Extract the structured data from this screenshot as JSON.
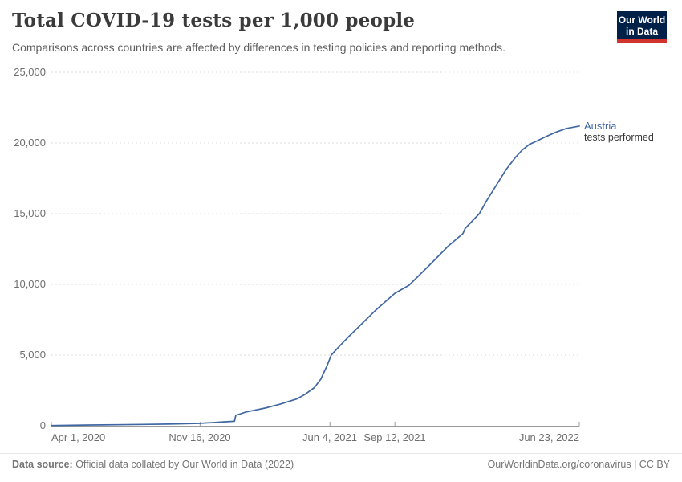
{
  "header": {
    "title": "Total COVID-19 tests per 1,000 people",
    "subtitle": "Comparisons across countries are affected by differences in testing policies and reporting methods.",
    "logo": {
      "line1": "Our World",
      "line2": "in Data",
      "bg_color": "#002147",
      "accent_color": "#D0342C"
    }
  },
  "chart_data": {
    "type": "line",
    "title": "Total COVID-19 tests per 1,000 people",
    "grid": "dashed",
    "legend_position": "end-of-line",
    "style": {
      "grid_color": "#DCDCDC",
      "axis_color": "#999999"
    },
    "x_axis": {
      "start_date": "2020-04-01",
      "end_date": "2022-06-23",
      "ticks": [
        {
          "date": "2020-04-01",
          "label": "Apr 1, 2020"
        },
        {
          "date": "2020-11-16",
          "label": "Nov 16, 2020"
        },
        {
          "date": "2021-06-04",
          "label": "Jun 4, 2021"
        },
        {
          "date": "2021-09-12",
          "label": "Sep 12, 2021"
        },
        {
          "date": "2022-06-23",
          "label": "Jun 23, 2022"
        }
      ]
    },
    "y_axis": {
      "min": 0,
      "max": 25000,
      "ticks": [
        0,
        5000,
        10000,
        15000,
        20000,
        25000
      ],
      "tick_labels": [
        "0",
        "5,000",
        "10,000",
        "15,000",
        "20,000",
        "25,000"
      ]
    },
    "series": [
      {
        "name": "Austria",
        "label": "Austria",
        "sublabel": "tests performed",
        "color": "#4067A3",
        "points": [
          [
            "2020-04-01",
            15
          ],
          [
            "2020-05-01",
            35
          ],
          [
            "2020-06-01",
            55
          ],
          [
            "2020-07-10",
            75
          ],
          [
            "2020-08-19",
            98
          ],
          [
            "2020-09-28",
            122
          ],
          [
            "2020-11-14",
            170
          ],
          [
            "2020-12-07",
            230
          ],
          [
            "2020-12-22",
            280
          ],
          [
            "2021-01-08",
            318
          ],
          [
            "2021-01-10",
            740
          ],
          [
            "2021-01-26",
            980
          ],
          [
            "2021-02-24",
            1250
          ],
          [
            "2021-03-20",
            1540
          ],
          [
            "2021-04-14",
            1900
          ],
          [
            "2021-04-26",
            2200
          ],
          [
            "2021-05-11",
            2700
          ],
          [
            "2021-05-21",
            3300
          ],
          [
            "2021-05-26",
            3800
          ],
          [
            "2021-05-31",
            4300
          ],
          [
            "2021-06-06",
            5000
          ],
          [
            "2021-06-20",
            5700
          ],
          [
            "2021-07-05",
            6400
          ],
          [
            "2021-07-25",
            7300
          ],
          [
            "2021-08-14",
            8200
          ],
          [
            "2021-09-12",
            9370
          ],
          [
            "2021-10-04",
            9950
          ],
          [
            "2021-11-03",
            11300
          ],
          [
            "2021-12-03",
            12700
          ],
          [
            "2021-12-26",
            13600
          ],
          [
            "2021-12-29",
            13950
          ],
          [
            "2022-01-20",
            15000
          ],
          [
            "2022-01-31",
            15900
          ],
          [
            "2022-02-15",
            17000
          ],
          [
            "2022-03-02",
            18100
          ],
          [
            "2022-03-17",
            19000
          ],
          [
            "2022-03-27",
            19500
          ],
          [
            "2022-04-07",
            19900
          ],
          [
            "2022-04-19",
            20150
          ],
          [
            "2022-05-01",
            20420
          ],
          [
            "2022-05-17",
            20750
          ],
          [
            "2022-06-03",
            21030
          ],
          [
            "2022-06-23",
            21200
          ]
        ]
      }
    ]
  },
  "footer": {
    "source_label": "Data source:",
    "source_text": " Official data collated by Our World in Data (2022)",
    "link_text": "OurWorldinData.org/coronavirus",
    "license_text": " | CC BY"
  }
}
